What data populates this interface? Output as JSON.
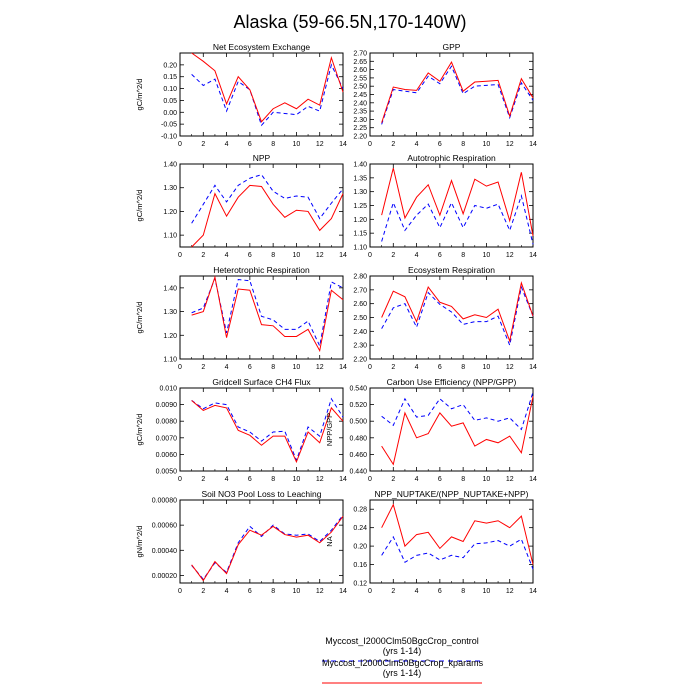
{
  "figure": {
    "title": "Alaska (59-66.5N,170-140W)",
    "legend": [
      {
        "label": "Myccost_I2000Clm50BgcCrop_control (yrs 1-14)",
        "color": "#0000ff",
        "dashed": true
      },
      {
        "label": "Myccost_I2000Clm50BgcCrop_kparams (yrs 1-14)",
        "color": "#ff0000",
        "dashed": false
      }
    ]
  },
  "chart_data": [
    {
      "type": "line",
      "title": "Net Ecosystem Exchange",
      "ylabel": "gC/m^2/d",
      "x": [
        1,
        2,
        3,
        4,
        5,
        6,
        7,
        8,
        9,
        10,
        11,
        12,
        13,
        14
      ],
      "xlim": [
        0,
        14
      ],
      "xticks": [
        0,
        2,
        4,
        6,
        8,
        10,
        12,
        14
      ],
      "ylim": [
        -0.1,
        0.25
      ],
      "yticks": [
        -0.1,
        -0.05,
        0.0,
        0.05,
        0.1,
        0.15,
        0.2
      ],
      "ytick_labels": [
        "-0.10",
        "-0.05",
        "0.00",
        "0.05",
        "0.10",
        "0.15",
        "0.20"
      ],
      "series": [
        {
          "color": "#0000ff",
          "dashed": true,
          "values": [
            0.16,
            0.113,
            0.14,
            0.005,
            0.13,
            0.095,
            -0.055,
            0.0,
            -0.005,
            -0.01,
            0.025,
            0.005,
            0.2,
            0.1
          ]
        },
        {
          "color": "#ff0000",
          "dashed": false,
          "values": [
            0.25,
            0.215,
            0.175,
            0.035,
            0.15,
            0.095,
            -0.04,
            0.015,
            0.04,
            0.015,
            0.055,
            0.03,
            0.23,
            0.085
          ]
        }
      ]
    },
    {
      "type": "line",
      "title": "GPP",
      "ylabel": "",
      "x": [
        1,
        2,
        3,
        4,
        5,
        6,
        7,
        8,
        9,
        10,
        11,
        12,
        13,
        14
      ],
      "xlim": [
        0,
        14
      ],
      "xticks": [
        0,
        2,
        4,
        6,
        8,
        10,
        12,
        14
      ],
      "ylim": [
        2.2,
        2.7
      ],
      "yticks": [
        2.2,
        2.25,
        2.3,
        2.35,
        2.4,
        2.45,
        2.5,
        2.55,
        2.6,
        2.65,
        2.7
      ],
      "ytick_labels": [
        "2.20",
        "2.25",
        "2.30",
        "2.35",
        "2.40",
        "2.45",
        "2.50",
        "2.55",
        "2.60",
        "2.65",
        "2.70"
      ],
      "series": [
        {
          "color": "#0000ff",
          "dashed": true,
          "values": [
            2.27,
            2.48,
            2.47,
            2.46,
            2.56,
            2.515,
            2.62,
            2.455,
            2.5,
            2.505,
            2.51,
            2.31,
            2.52,
            2.415
          ]
        },
        {
          "color": "#ff0000",
          "dashed": false,
          "values": [
            2.28,
            2.495,
            2.48,
            2.475,
            2.58,
            2.53,
            2.645,
            2.47,
            2.525,
            2.53,
            2.535,
            2.32,
            2.545,
            2.43
          ]
        }
      ]
    },
    {
      "type": "line",
      "title": "NPP",
      "ylabel": "gC/m^2/d",
      "x": [
        1,
        2,
        3,
        4,
        5,
        6,
        7,
        8,
        9,
        10,
        11,
        12,
        13,
        14
      ],
      "xlim": [
        0,
        14
      ],
      "xticks": [
        0,
        2,
        4,
        6,
        8,
        10,
        12,
        14
      ],
      "ylim": [
        1.05,
        1.4
      ],
      "yticks": [
        1.1,
        1.2,
        1.3,
        1.4
      ],
      "ytick_labels": [
        "1.10",
        "1.20",
        "1.30",
        "1.40"
      ],
      "series": [
        {
          "color": "#0000ff",
          "dashed": true,
          "values": [
            1.15,
            1.23,
            1.31,
            1.24,
            1.31,
            1.34,
            1.355,
            1.285,
            1.255,
            1.265,
            1.26,
            1.17,
            1.235,
            1.295
          ]
        },
        {
          "color": "#ff0000",
          "dashed": false,
          "values": [
            1.05,
            1.1,
            1.275,
            1.18,
            1.26,
            1.31,
            1.305,
            1.23,
            1.175,
            1.205,
            1.2,
            1.12,
            1.17,
            1.275
          ]
        }
      ]
    },
    {
      "type": "line",
      "title": "Autotrophic Respiration",
      "ylabel": "",
      "x": [
        1,
        2,
        3,
        4,
        5,
        6,
        7,
        8,
        9,
        10,
        11,
        12,
        13,
        14
      ],
      "xlim": [
        0,
        14
      ],
      "xticks": [
        0,
        2,
        4,
        6,
        8,
        10,
        12,
        14
      ],
      "ylim": [
        1.1,
        1.4
      ],
      "yticks": [
        1.1,
        1.15,
        1.2,
        1.25,
        1.3,
        1.35,
        1.4
      ],
      "ytick_labels": [
        "1.10",
        "1.15",
        "1.20",
        "1.25",
        "1.30",
        "1.35",
        "1.40"
      ],
      "series": [
        {
          "color": "#0000ff",
          "dashed": true,
          "values": [
            1.12,
            1.26,
            1.16,
            1.215,
            1.255,
            1.17,
            1.26,
            1.17,
            1.25,
            1.24,
            1.255,
            1.16,
            1.285,
            1.11
          ]
        },
        {
          "color": "#ff0000",
          "dashed": false,
          "values": [
            1.215,
            1.385,
            1.205,
            1.28,
            1.325,
            1.215,
            1.34,
            1.22,
            1.345,
            1.32,
            1.335,
            1.195,
            1.37,
            1.14
          ]
        }
      ]
    },
    {
      "type": "line",
      "title": "Heterotrophic Respiration",
      "ylabel": "gC/m^2/d",
      "x": [
        1,
        2,
        3,
        4,
        5,
        6,
        7,
        8,
        9,
        10,
        11,
        12,
        13,
        14
      ],
      "xlim": [
        0,
        14
      ],
      "xticks": [
        0,
        2,
        4,
        6,
        8,
        10,
        12,
        14
      ],
      "ylim": [
        1.1,
        1.45
      ],
      "yticks": [
        1.1,
        1.2,
        1.3,
        1.4
      ],
      "ytick_labels": [
        "1.10",
        "1.20",
        "1.30",
        "1.40"
      ],
      "series": [
        {
          "color": "#0000ff",
          "dashed": true,
          "values": [
            1.295,
            1.315,
            1.44,
            1.21,
            1.435,
            1.43,
            1.28,
            1.265,
            1.225,
            1.225,
            1.26,
            1.155,
            1.425,
            1.4
          ]
        },
        {
          "color": "#ff0000",
          "dashed": false,
          "values": [
            1.285,
            1.3,
            1.445,
            1.19,
            1.395,
            1.39,
            1.245,
            1.24,
            1.195,
            1.195,
            1.225,
            1.135,
            1.39,
            1.35
          ]
        }
      ]
    },
    {
      "type": "line",
      "title": "Ecosystem Respiration",
      "ylabel": "",
      "x": [
        1,
        2,
        3,
        4,
        5,
        6,
        7,
        8,
        9,
        10,
        11,
        12,
        13,
        14
      ],
      "xlim": [
        0,
        14
      ],
      "xticks": [
        0,
        2,
        4,
        6,
        8,
        10,
        12,
        14
      ],
      "ylim": [
        2.2,
        2.8
      ],
      "yticks": [
        2.2,
        2.3,
        2.4,
        2.5,
        2.6,
        2.7,
        2.8
      ],
      "ytick_labels": [
        "2.20",
        "2.30",
        "2.40",
        "2.50",
        "2.60",
        "2.70",
        "2.80"
      ],
      "series": [
        {
          "color": "#0000ff",
          "dashed": true,
          "values": [
            2.42,
            2.57,
            2.6,
            2.43,
            2.68,
            2.595,
            2.54,
            2.45,
            2.47,
            2.47,
            2.51,
            2.3,
            2.72,
            2.51
          ]
        },
        {
          "color": "#ff0000",
          "dashed": false,
          "values": [
            2.5,
            2.69,
            2.65,
            2.47,
            2.72,
            2.61,
            2.58,
            2.49,
            2.52,
            2.5,
            2.56,
            2.33,
            2.75,
            2.51
          ]
        }
      ]
    },
    {
      "type": "line",
      "title": "Gridcell Surface CH4 Flux",
      "ylabel": "gC/m^2/d",
      "x": [
        1,
        2,
        3,
        4,
        5,
        6,
        7,
        8,
        9,
        10,
        11,
        12,
        13,
        14
      ],
      "xlim": [
        0,
        14
      ],
      "xticks": [
        0,
        2,
        4,
        6,
        8,
        10,
        12,
        14
      ],
      "ylim": [
        0.005,
        0.01
      ],
      "yticks": [
        0.005,
        0.006,
        0.007,
        0.008,
        0.009,
        0.01
      ],
      "ytick_labels": [
        "0.0050",
        "0.0060",
        "0.0070",
        "0.0080",
        "0.0090",
        "0.010"
      ],
      "series": [
        {
          "color": "#0000ff",
          "dashed": true,
          "values": [
            0.00925,
            0.00875,
            0.0091,
            0.009,
            0.00765,
            0.00735,
            0.0068,
            0.00735,
            0.0074,
            0.00565,
            0.00765,
            0.0071,
            0.00935,
            0.00825
          ]
        },
        {
          "color": "#ff0000",
          "dashed": false,
          "values": [
            0.00925,
            0.00865,
            0.00895,
            0.0088,
            0.00745,
            0.00715,
            0.00655,
            0.0071,
            0.0071,
            0.00555,
            0.00735,
            0.0067,
            0.0088,
            0.008
          ]
        }
      ]
    },
    {
      "type": "line",
      "title": "Carbon Use Efficiency (NPP/GPP)",
      "ylabel": "NPP/GPP",
      "x": [
        1,
        2,
        3,
        4,
        5,
        6,
        7,
        8,
        9,
        10,
        11,
        12,
        13,
        14
      ],
      "xlim": [
        0,
        14
      ],
      "xticks": [
        0,
        2,
        4,
        6,
        8,
        10,
        12,
        14
      ],
      "ylim": [
        0.44,
        0.54
      ],
      "yticks": [
        0.44,
        0.46,
        0.48,
        0.5,
        0.52,
        0.54
      ],
      "ytick_labels": [
        "0.440",
        "0.460",
        "0.480",
        "0.500",
        "0.520",
        "0.540"
      ],
      "series": [
        {
          "color": "#0000ff",
          "dashed": true,
          "values": [
            0.506,
            0.495,
            0.527,
            0.505,
            0.507,
            0.527,
            0.515,
            0.52,
            0.501,
            0.504,
            0.5,
            0.504,
            0.49,
            0.535
          ]
        },
        {
          "color": "#ff0000",
          "dashed": false,
          "values": [
            0.47,
            0.448,
            0.51,
            0.48,
            0.485,
            0.51,
            0.494,
            0.498,
            0.47,
            0.478,
            0.474,
            0.482,
            0.462,
            0.53
          ]
        }
      ]
    },
    {
      "type": "line",
      "title": "Soil NO3 Pool Loss to Leaching",
      "ylabel": "gN/m^2/d",
      "x": [
        1,
        2,
        3,
        4,
        5,
        6,
        7,
        8,
        9,
        10,
        11,
        12,
        13,
        14
      ],
      "xlim": [
        0,
        14
      ],
      "xticks": [
        0,
        2,
        4,
        6,
        8,
        10,
        12,
        14
      ],
      "ylim": [
        0.00014,
        0.0008
      ],
      "yticks": [
        0.0002,
        0.0004,
        0.0006,
        0.0008
      ],
      "ytick_labels": [
        "0.00020",
        "0.00040",
        "0.00060",
        "0.00080"
      ],
      "series": [
        {
          "color": "#0000ff",
          "dashed": true,
          "values": [
            0.00028,
            0.00017,
            0.0003,
            0.000225,
            0.00046,
            0.00059,
            0.00051,
            0.0006,
            0.00053,
            0.00052,
            0.00053,
            0.00047,
            0.00056,
            0.00068
          ]
        },
        {
          "color": "#ff0000",
          "dashed": false,
          "values": [
            0.000285,
            0.00016,
            0.00031,
            0.000215,
            0.000445,
            0.00056,
            0.00052,
            0.00059,
            0.000525,
            0.000505,
            0.00052,
            0.00046,
            0.000545,
            0.00067
          ]
        }
      ]
    },
    {
      "type": "line",
      "title": "NPP_NUPTAKE/(NPP_NUPTAKE+NPP)",
      "ylabel": "NA",
      "x": [
        1,
        2,
        3,
        4,
        5,
        6,
        7,
        8,
        9,
        10,
        11,
        12,
        13,
        14
      ],
      "xlim": [
        0,
        14
      ],
      "xticks": [
        0,
        2,
        4,
        6,
        8,
        10,
        12,
        14
      ],
      "ylim": [
        0.12,
        0.3
      ],
      "yticks": [
        0.12,
        0.16,
        0.2,
        0.24,
        0.28
      ],
      "ytick_labels": [
        "0.12",
        "0.16",
        "0.20",
        "0.24",
        "0.28"
      ],
      "series": [
        {
          "color": "#0000ff",
          "dashed": true,
          "values": [
            0.18,
            0.22,
            0.165,
            0.18,
            0.185,
            0.17,
            0.18,
            0.175,
            0.205,
            0.207,
            0.212,
            0.2,
            0.215,
            0.15
          ]
        },
        {
          "color": "#ff0000",
          "dashed": false,
          "values": [
            0.24,
            0.29,
            0.2,
            0.225,
            0.23,
            0.195,
            0.22,
            0.21,
            0.255,
            0.25,
            0.255,
            0.24,
            0.265,
            0.16
          ]
        }
      ]
    }
  ]
}
